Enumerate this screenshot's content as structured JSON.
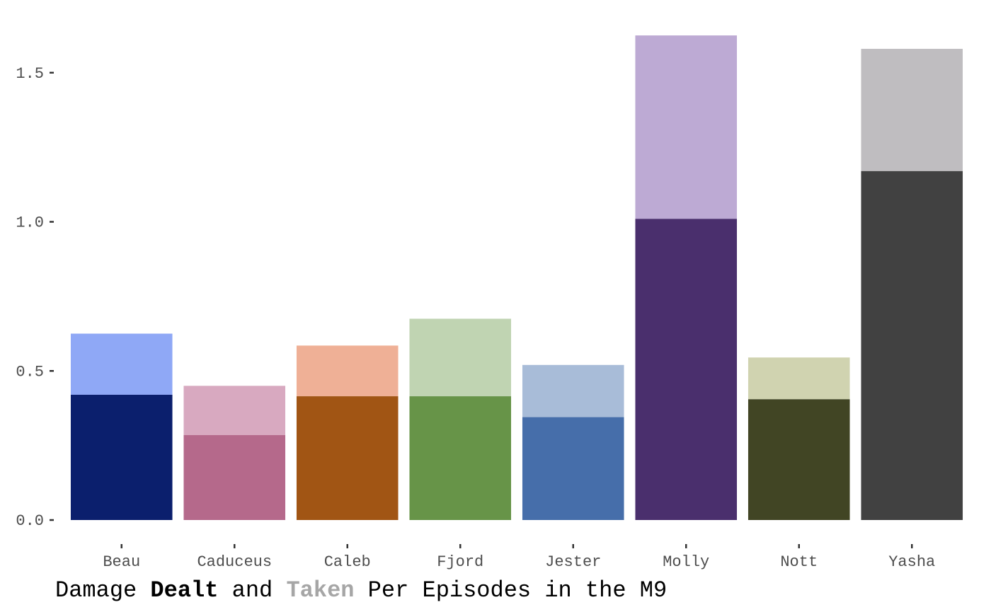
{
  "chart_data": {
    "type": "bar",
    "stacked": true,
    "categories": [
      "Beau",
      "Caduceus",
      "Caleb",
      "Fjord",
      "Jester",
      "Molly",
      "Nott",
      "Yasha"
    ],
    "series": [
      {
        "values": [
          0.42,
          0.285,
          0.415,
          0.415,
          0.345,
          1.01,
          0.405,
          1.17
        ]
      },
      {
        "values": [
          0.205,
          0.165,
          0.17,
          0.26,
          0.175,
          0.615,
          0.14,
          0.41
        ]
      }
    ],
    "totals": [
      0.625,
      0.45,
      0.585,
      0.675,
      0.52,
      1.625,
      0.545,
      1.58
    ],
    "colors": {
      "dealt": [
        "#0b1f6d",
        "#b5698b",
        "#a15514",
        "#679448",
        "#466eaa",
        "#4a2f6d",
        "#414524",
        "#414141"
      ],
      "taken": [
        "#8fa8f6",
        "#d8a9c0",
        "#efb096",
        "#c0d4b2",
        "#a8bcd8",
        "#bdaad4",
        "#d0d3b0",
        "#bfbdc0"
      ]
    },
    "ylim": [
      0,
      1.625
    ],
    "yticks": [
      "0.0",
      "0.5",
      "1.0",
      "1.5"
    ],
    "ytick_values": [
      0,
      0.5,
      1.0,
      1.5
    ],
    "title": {
      "part1": "Damage ",
      "dealt": "Dealt",
      "part2": " and ",
      "taken": "Taken",
      "part3": " Per Episodes in the M9"
    },
    "title_colors": {
      "dealt": "#000000",
      "taken": "#a6a6a6"
    },
    "grid": false,
    "legend": "none"
  }
}
